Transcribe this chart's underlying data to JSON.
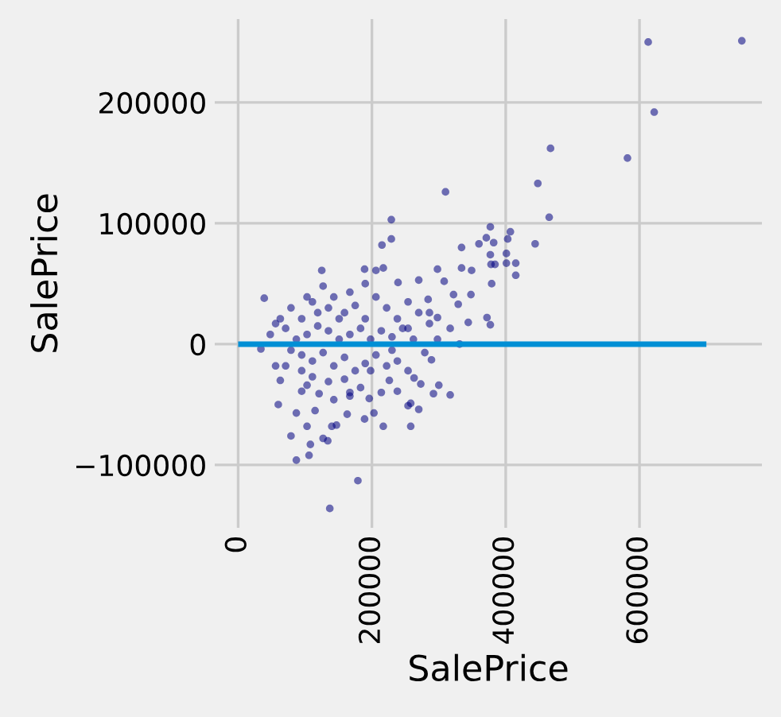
{
  "chart_data": {
    "type": "scatter",
    "xlabel": "SalePrice",
    "ylabel": "SalePrice",
    "xlim": [
      -35000,
      783000
    ],
    "ylim": [
      -152000,
      269000
    ],
    "xticks": [
      0,
      200000,
      400000,
      600000
    ],
    "yticks": [
      -100000,
      0,
      100000,
      200000
    ],
    "grid": true,
    "series": [
      {
        "marker": "circle",
        "color": "#000080",
        "x": [
          753000,
          613000,
          622000,
          582000,
          467000,
          448000,
          465000,
          444000,
          310000,
          229000,
          229000,
          215000,
          377000,
          407000,
          403000,
          371000,
          382000,
          360000,
          334000,
          401000,
          377000,
          378000,
          384000,
          401000,
          415000,
          415000,
          379000,
          349000,
          334000,
          298000,
          217000,
          189000,
          125000,
          39000,
          372000,
          377000,
          344000,
          348000,
          329000,
          322000,
          308000,
          270000,
          239000,
          284000,
          298000,
          317000,
          298000,
          331000,
          317000,
          300000,
          292000,
          270000,
          258000,
          217000,
          189000,
          179000,
          137000,
          87000,
          106000,
          108000,
          79000,
          134000,
          127000,
          103000,
          87000,
          60000,
          34000,
          63000,
          56000,
          273000,
          263000,
          258000,
          254000,
          203000,
          163000,
          147000,
          140000,
          115000,
          121000,
          95000,
          103000,
          143000,
          167000,
          196000,
          238000,
          226000,
          254000,
          289000,
          279000,
          79000,
          95000,
          111000,
          127000,
          143000,
          159000,
          175000,
          190000,
          206000,
          222000,
          238000,
          254000,
          270000,
          286000,
          71000,
          87000,
          103000,
          119000,
          135000,
          151000,
          167000,
          183000,
          198000,
          214000,
          230000,
          246000,
          262000,
          79000,
          95000,
          111000,
          127000,
          143000,
          159000,
          175000,
          190000,
          206000,
          222000,
          238000,
          111000,
          135000,
          159000,
          183000,
          95000,
          71000,
          48000,
          56000,
          63000,
          119000,
          151000,
          135000,
          103000,
          167000,
          190000,
          206000,
          286000,
          254000,
          230000,
          198000,
          167000,
          214000
        ],
        "values": [
          251000,
          250000,
          192000,
          154000,
          162000,
          133000,
          105000,
          83000,
          126000,
          103000,
          87000,
          82000,
          97000,
          93000,
          87000,
          88000,
          84000,
          83000,
          80000,
          75000,
          74000,
          66000,
          66000,
          67000,
          67000,
          57000,
          50000,
          61000,
          63000,
          62000,
          63000,
          62000,
          61000,
          38000,
          22000,
          16000,
          18000,
          41000,
          33000,
          41000,
          52000,
          53000,
          51000,
          37000,
          22000,
          13000,
          4000,
          0,
          -42000,
          -34000,
          -41000,
          -54000,
          -68000,
          -68000,
          -62000,
          -113000,
          -136000,
          -96000,
          -92000,
          -83000,
          -76000,
          -80000,
          -78000,
          -68000,
          -57000,
          -50000,
          -4000,
          -30000,
          -18000,
          -33000,
          -28000,
          -49000,
          -51000,
          -57000,
          -58000,
          -67000,
          -68000,
          -55000,
          -41000,
          -39000,
          -34000,
          -46000,
          -43000,
          -45000,
          -39000,
          -30000,
          -22000,
          -13000,
          -7000,
          30000,
          21000,
          35000,
          48000,
          39000,
          26000,
          32000,
          21000,
          39000,
          30000,
          21000,
          35000,
          26000,
          17000,
          13000,
          4000,
          8000,
          15000,
          11000,
          4000,
          8000,
          13000,
          4000,
          11000,
          6000,
          13000,
          4000,
          -5000,
          -9000,
          -14000,
          -7000,
          -18000,
          -11000,
          -22000,
          -16000,
          -9000,
          -18000,
          -14000,
          -27000,
          -31000,
          -29000,
          -36000,
          -22000,
          -18000,
          8000,
          17000,
          21000,
          26000,
          21000,
          30000,
          39000,
          43000,
          50000,
          61000,
          26000,
          13000,
          -5000,
          -22000,
          -40000,
          -40000
        ]
      },
      {
        "type": "line",
        "color": "#008fd5",
        "x": [
          0,
          700000
        ],
        "values": [
          0,
          0
        ]
      }
    ]
  }
}
